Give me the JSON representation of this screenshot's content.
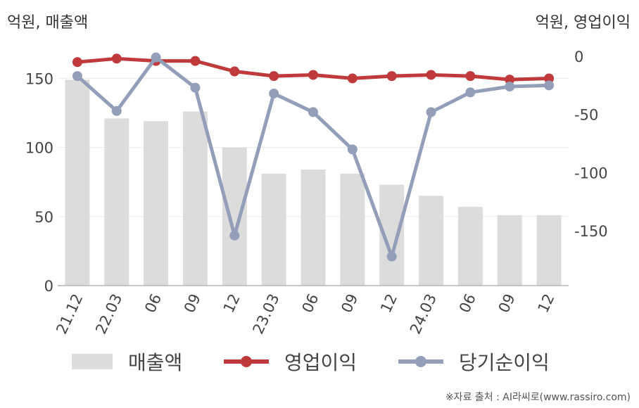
{
  "chart_data": {
    "type": "bar+line",
    "left_axis_title": "억원, 매출액",
    "right_axis_title": "억원, 영업이익",
    "categories": [
      "21.12",
      "22.03",
      "06",
      "09",
      "12",
      "23.03",
      "06",
      "09",
      "12",
      "24.03",
      "06",
      "09",
      "12"
    ],
    "left_axis": {
      "min": 0,
      "max": 166,
      "ticks": [
        0,
        50,
        100,
        150
      ]
    },
    "right_axis": {
      "min": -197,
      "max": 0,
      "ticks": [
        0,
        -50,
        -100,
        -150
      ]
    },
    "series": [
      {
        "name": "매출액",
        "type": "bar",
        "axis": "left",
        "color": "#dcdcdc",
        "values": [
          149,
          121,
          119,
          126,
          100,
          81,
          84,
          81,
          73,
          65,
          57,
          51,
          51
        ]
      },
      {
        "name": "영업이익",
        "type": "line",
        "axis": "right",
        "color": "#c0393b",
        "values": [
          -5,
          -2,
          -4,
          -4,
          -13,
          -17,
          -16,
          -19,
          -17,
          -16,
          -17,
          -20,
          -19
        ]
      },
      {
        "name": "당기순이익",
        "type": "line",
        "axis": "right",
        "color": "#939fb8",
        "values": [
          -17,
          -47,
          -1,
          -27,
          -154,
          -32,
          -48,
          -80,
          -172,
          -48,
          -31,
          -26,
          -25
        ]
      }
    ],
    "legend_position": "bottom"
  },
  "source_text": "※자료 출처 : AI라씨로(www.rassiro.com)"
}
